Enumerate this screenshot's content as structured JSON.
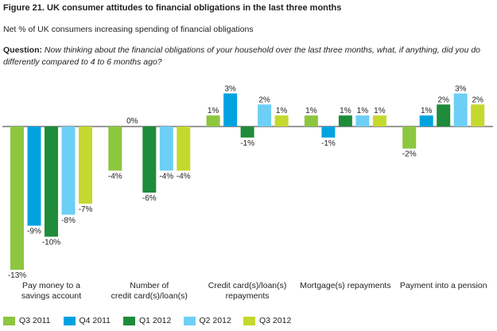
{
  "title": "Figure 21. UK consumer attitudes to financial obligations in the last three months",
  "subtitle": "Net % of UK consumers increasing spending of financial obligations",
  "question": {
    "label": "Question:",
    "text": "Now thinking about the financial obligations of your household over the last three months, what, if anything, did you do differently compared to 4 to 6 months ago?"
  },
  "chart_data": {
    "type": "bar",
    "categories": [
      [
        "Pay money to a",
        "savings account"
      ],
      [
        "Number of",
        "credit card(s)/loan(s)"
      ],
      [
        "Credit card(s)/loan(s)",
        "repayments"
      ],
      [
        "Mortgage(s) repayments"
      ],
      [
        "Payment into a pension"
      ]
    ],
    "series": [
      {
        "name": "Q3 2011",
        "color": "#8dc63f",
        "values": [
          -13,
          -4,
          1,
          1,
          -2
        ]
      },
      {
        "name": "Q4 2011",
        "color": "#00a3e0",
        "values": [
          -9,
          0,
          3,
          -1,
          1
        ]
      },
      {
        "name": "Q1 2012",
        "color": "#1e8c3a",
        "values": [
          -10,
          -6,
          -1,
          1,
          2
        ]
      },
      {
        "name": "Q2 2012",
        "color": "#6dcff6",
        "values": [
          -8,
          -4,
          2,
          1,
          3
        ]
      },
      {
        "name": "Q3 2012",
        "color": "#c5d82e",
        "values": [
          -7,
          -4,
          1,
          1,
          2
        ]
      }
    ],
    "data_labels": [
      [
        "-13%",
        "-4%",
        "1%",
        "1%",
        "-2%"
      ],
      [
        "-9%",
        "0%",
        "3%",
        "-1%",
        "1%"
      ],
      [
        "-10%",
        "-6%",
        "-1%",
        "1%",
        "2%"
      ],
      [
        "-8%",
        "-4%",
        "2%",
        "1%",
        "3%"
      ],
      [
        "-7%",
        "-4%",
        "1%",
        "1%",
        "2%"
      ]
    ],
    "ylim": [
      -13,
      3
    ],
    "grid": false,
    "legend_position": "bottom"
  }
}
